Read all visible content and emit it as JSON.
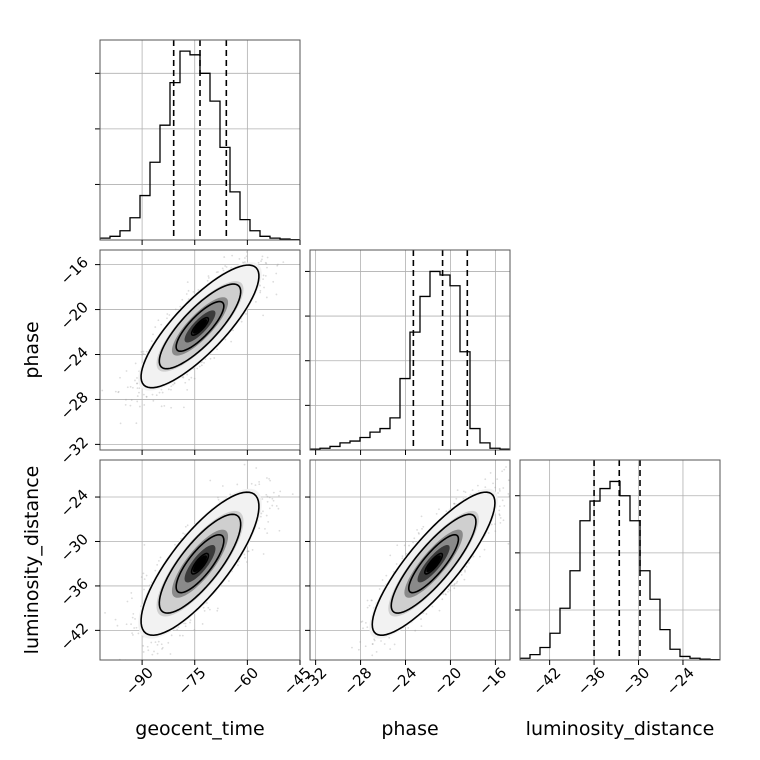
{
  "chart_data": {
    "type": "corner",
    "parameters": [
      "geocent_time",
      "phase",
      "luminosity_distance"
    ],
    "axes": {
      "geocent_time": {
        "label": "geocent_time",
        "range": [
          -102,
          -45
        ],
        "ticks": [
          -90,
          -75,
          -60,
          -45
        ],
        "tick_labels": [
          "−90",
          "−75",
          "−60",
          "−45"
        ]
      },
      "phase": {
        "label": "phase",
        "range": [
          -32.5,
          -14.7
        ],
        "ticks": [
          -32,
          -28,
          -24,
          -20,
          -16
        ],
        "tick_labels": [
          "−32",
          "−28",
          "−24",
          "−20",
          "−16"
        ]
      },
      "luminosity_distance": {
        "label": "luminosity_distance",
        "range": [
          -46,
          -19
        ],
        "ticks": [
          -42,
          -36,
          -30,
          -24
        ],
        "tick_labels": [
          "−42",
          "−36",
          "−30",
          "−24"
        ]
      }
    },
    "marginals": {
      "geocent_time": {
        "bin_edges": [
          -102.0,
          -99.15,
          -96.3,
          -93.45,
          -90.6,
          -87.75,
          -84.9,
          -82.05,
          -79.2,
          -76.35,
          -73.5,
          -70.65,
          -67.8,
          -64.95,
          -62.1,
          -59.25,
          -56.4,
          -53.55,
          -50.7,
          -47.85,
          -45.0
        ],
        "counts": [
          0.01,
          0.02,
          0.05,
          0.12,
          0.24,
          0.42,
          0.62,
          0.85,
          1.02,
          1.0,
          0.9,
          0.75,
          0.5,
          0.26,
          0.11,
          0.05,
          0.02,
          0.01,
          0.005,
          0.002
        ],
        "quantiles": [
          -81.0,
          -73.5,
          -66.0
        ],
        "ylim": [
          0,
          1.08
        ],
        "gridlines": [
          0.3,
          0.6,
          0.9
        ]
      },
      "phase": {
        "bin_edges": [
          -32.5,
          -31.61,
          -30.72,
          -29.83,
          -28.94,
          -28.05,
          -27.16,
          -26.27,
          -25.38,
          -24.49,
          -23.6,
          -22.71,
          -21.82,
          -20.93,
          -20.04,
          -19.15,
          -18.26,
          -17.37,
          -16.48,
          -15.59,
          -14.7
        ],
        "counts": [
          0.005,
          0.01,
          0.02,
          0.04,
          0.05,
          0.07,
          0.1,
          0.12,
          0.18,
          0.4,
          0.66,
          0.86,
          1.0,
          0.98,
          0.92,
          0.55,
          0.12,
          0.04,
          0.01,
          0.005
        ],
        "quantiles": [
          -23.3,
          -20.7,
          -18.5
        ],
        "ylim": [
          0,
          1.12
        ],
        "gridlines": [
          0.25,
          0.5,
          0.75,
          1.0
        ]
      },
      "luminosity_distance": {
        "bin_edges": [
          -46.0,
          -44.65,
          -43.3,
          -41.95,
          -40.6,
          -39.25,
          -37.9,
          -36.55,
          -35.2,
          -33.85,
          -32.5,
          -31.15,
          -29.8,
          -28.45,
          -27.1,
          -25.75,
          -24.4,
          -23.05,
          -21.7,
          -20.35,
          -19.0
        ],
        "counts": [
          0.01,
          0.03,
          0.07,
          0.15,
          0.29,
          0.5,
          0.78,
          0.89,
          0.96,
          1.0,
          0.92,
          0.78,
          0.5,
          0.34,
          0.17,
          0.06,
          0.02,
          0.01,
          0.005,
          0.002
        ],
        "quantiles": [
          -36.0,
          -32.6,
          -29.8
        ],
        "ylim": [
          0,
          1.12
        ],
        "gridlines": [
          0.28,
          0.6,
          0.92
        ]
      }
    },
    "pairs": [
      {
        "x": "geocent_time",
        "y": "phase",
        "mean": [
          -73.5,
          -21.5
        ],
        "sd": [
          8.0,
          2.6
        ],
        "corr": 0.82
      },
      {
        "x": "geocent_time",
        "y": "luminosity_distance",
        "mean": [
          -73.5,
          -33.0
        ],
        "sd": [
          8.0,
          4.6
        ],
        "corr": 0.8
      },
      {
        "x": "phase",
        "y": "luminosity_distance",
        "mean": [
          -21.5,
          -33.0
        ],
        "sd": [
          2.6,
          4.6
        ],
        "corr": 0.85
      }
    ],
    "contour_levels": [
      "0.5",
      "1.0",
      "1.5",
      "2.0"
    ],
    "grid": true,
    "colors": {
      "line": "#000000",
      "grid": "#b0b0b0",
      "scatter": "#9a9a9a",
      "contour_fill": "#000000"
    }
  }
}
